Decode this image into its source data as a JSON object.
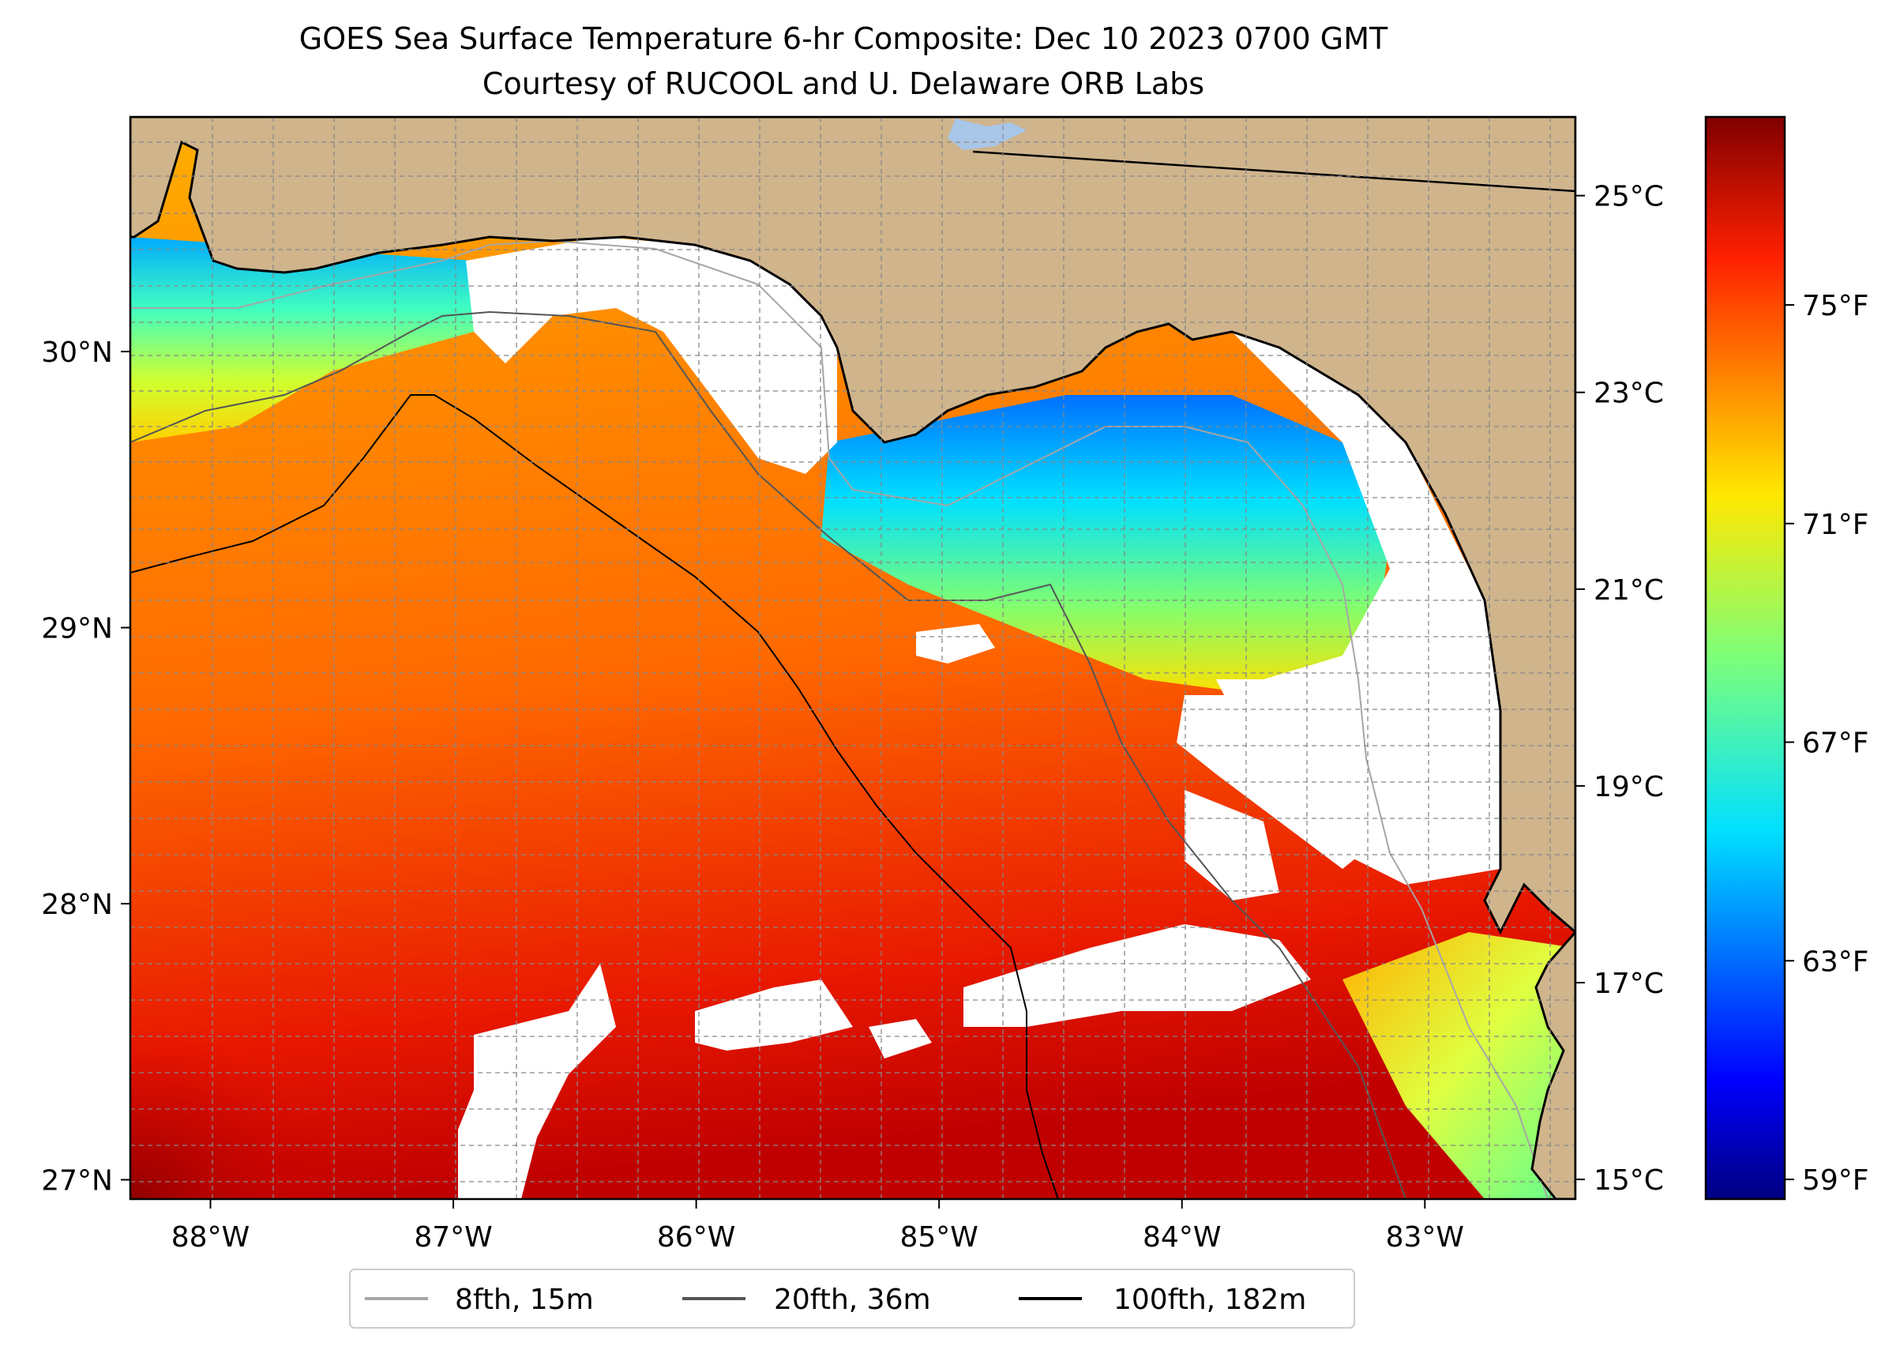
{
  "title": {
    "line1": "GOES Sea Surface Temperature 6-hr Composite: Dec 10 2023 0700 GMT",
    "line2": "Courtesy of RUCOOL and U. Delaware ORB Labs"
  },
  "map": {
    "lon_range": [
      -88.33,
      -82.38
    ],
    "lat_range": [
      26.93,
      30.85
    ],
    "lon_ticks": [
      {
        "value": -88,
        "label": "88°W"
      },
      {
        "value": -87,
        "label": "87°W"
      },
      {
        "value": -86,
        "label": "86°W"
      },
      {
        "value": -85,
        "label": "85°W"
      },
      {
        "value": -84,
        "label": "84°W"
      },
      {
        "value": -83,
        "label": "83°W"
      }
    ],
    "lat_ticks": [
      {
        "value": 30,
        "label": "30°N"
      },
      {
        "value": 29,
        "label": "29°N"
      },
      {
        "value": 28,
        "label": "28°N"
      },
      {
        "value": 27,
        "label": "27°N"
      }
    ],
    "land_color": "#cfb48c",
    "cloud_color": "#ffffff",
    "gridlines": "dashed-grey"
  },
  "colorbar": {
    "colormap": "jet",
    "celsius_range": [
      14.8,
      25.8
    ],
    "celsius_ticks": [
      {
        "value": 25,
        "label": "25°C"
      },
      {
        "value": 23,
        "label": "23°C"
      },
      {
        "value": 21,
        "label": "21°C"
      },
      {
        "value": 19,
        "label": "19°C"
      },
      {
        "value": 17,
        "label": "17°C"
      },
      {
        "value": 15,
        "label": "15°C"
      }
    ],
    "fahrenheit_ticks": [
      {
        "value": 75,
        "label": "75°F"
      },
      {
        "value": 71,
        "label": "71°F"
      },
      {
        "value": 67,
        "label": "67°F"
      },
      {
        "value": 63,
        "label": "63°F"
      },
      {
        "value": 59,
        "label": "59°F"
      }
    ]
  },
  "legend": {
    "items": [
      {
        "label": "8fth, 15m",
        "color": "#a6a6a6"
      },
      {
        "label": "20fth, 36m",
        "color": "#555555"
      },
      {
        "label": "100fth, 182m",
        "color": "#000000"
      }
    ]
  }
}
